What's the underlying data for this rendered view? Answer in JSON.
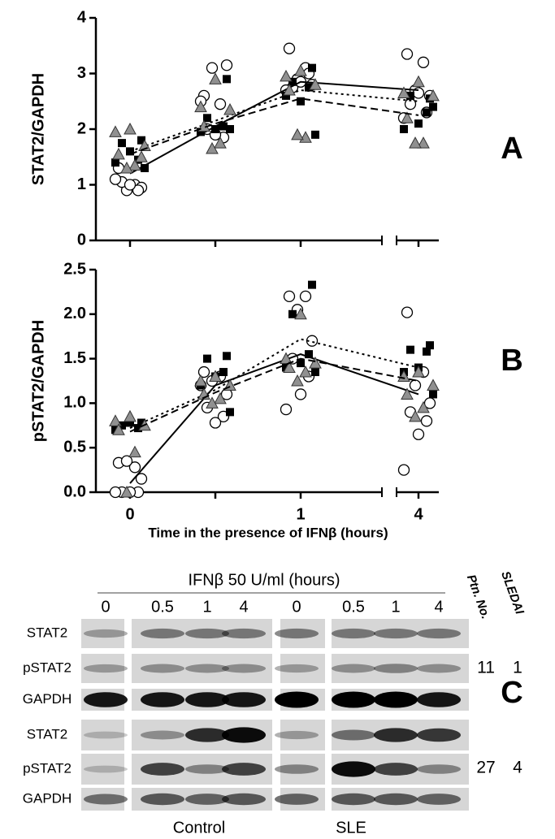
{
  "chart_data": [
    {
      "type": "scatter",
      "panel": "A",
      "ylabel": "STAT2/GAPDH",
      "categories": [
        "0",
        null,
        "1",
        "4"
      ],
      "ylim": [
        0,
        4
      ],
      "yticks": [
        0,
        1,
        2,
        3,
        4
      ],
      "series": [
        {
          "marker": "circle",
          "color": "#ffffff",
          "line_style": "solid",
          "values": [
            [
              1.3,
              1.0,
              0.9,
              0.95,
              1.05,
              0.9,
              1.0,
              1.1
            ],
            [
              2.6,
              2.45,
              3.1,
              3.15,
              2.0,
              1.85,
              1.9,
              2.5
            ],
            [
              3.45,
              3.1,
              2.9,
              2.8,
              2.75,
              3.0,
              2.85,
              2.7
            ],
            [
              3.35,
              3.2,
              2.7,
              2.6,
              2.45,
              2.3,
              2.65,
              2.2
            ]
          ],
          "means": [
            1.2,
            2.05,
            2.85,
            2.7
          ]
        },
        {
          "marker": "square",
          "color": "#000000",
          "line_style": "dotted",
          "values": [
            [
              1.8,
              1.75,
              1.45,
              1.6,
              1.4,
              1.3
            ],
            [
              2.9,
              2.2,
              2.05,
              2.0,
              1.95,
              2.0
            ],
            [
              3.1,
              2.85,
              2.75,
              2.5,
              2.6,
              1.9
            ],
            [
              2.55,
              2.6,
              2.3,
              2.1,
              2.0,
              2.4
            ]
          ],
          "means": [
            1.6,
            2.15,
            2.7,
            2.5
          ]
        },
        {
          "marker": "triangle",
          "color": "#909090",
          "line_style": "dashed",
          "values": [
            [
              2.0,
              1.95,
              1.7,
              1.55,
              1.35,
              1.3,
              1.5
            ],
            [
              2.9,
              2.4,
              2.35,
              2.05,
              1.75,
              1.65
            ],
            [
              3.05,
              2.95,
              2.8,
              2.7,
              1.85,
              1.9
            ],
            [
              2.85,
              2.65,
              2.6,
              2.2,
              1.75,
              1.75
            ]
          ],
          "means": [
            1.55,
            2.1,
            2.55,
            2.25
          ]
        }
      ]
    },
    {
      "type": "scatter",
      "panel": "B",
      "ylabel": "pSTAT2/GAPDH",
      "xlabel": "Time in the presence of IFNβ (hours)",
      "categories": [
        "0",
        null,
        "1",
        "4"
      ],
      "ylim": [
        0,
        2.5
      ],
      "yticks": [
        {
          "value": 0,
          "label": "0.0"
        },
        0.5,
        {
          "value": 1,
          "label": "1.0"
        },
        1.5,
        {
          "value": 2,
          "label": "2.0"
        },
        2.5
      ],
      "series": [
        {
          "marker": "circle",
          "color": "#ffffff",
          "line_style": "solid",
          "values": [
            [
              0.33,
              0.28,
              0.35,
              0.15,
              0,
              0,
              0,
              0
            ],
            [
              1.35,
              1.3,
              1.25,
              1.1,
              0.95,
              0.85,
              0.78,
              1.2
            ],
            [
              2.2,
              2.2,
              2.05,
              1.7,
              1.5,
              1.3,
              1.1,
              0.93
            ],
            [
              2.02,
              1.35,
              1.2,
              1.0,
              0.9,
              0.8,
              0.65,
              0.25
            ]
          ],
          "means": [
            0.1,
            1.2,
            1.55,
            1.1
          ]
        },
        {
          "marker": "square",
          "color": "#000000",
          "line_style": "dotted",
          "values": [
            [
              0.78,
              0.75,
              0.72,
              0.78,
              0.7
            ],
            [
              1.53,
              1.5,
              1.35,
              1.3,
              1.2,
              0.9
            ],
            [
              2.33,
              2.0,
              1.55,
              1.45,
              1.4,
              1.35
            ],
            [
              1.65,
              1.6,
              1.58,
              1.4,
              1.35,
              1.1
            ]
          ],
          "means": [
            0.72,
            1.15,
            1.72,
            1.4
          ]
        },
        {
          "marker": "triangle",
          "color": "#909090",
          "line_style": "dashed",
          "values": [
            [
              0.85,
              0.8,
              0.75,
              0.7,
              0.45,
              0
            ],
            [
              1.3,
              1.25,
              1.2,
              1.1,
              1.05,
              1.0
            ],
            [
              2.0,
              1.5,
              1.45,
              1.4,
              1.35,
              1.25
            ],
            [
              1.35,
              1.3,
              1.2,
              1.1,
              0.95,
              0.85
            ]
          ],
          "means": [
            0.68,
            1.12,
            1.5,
            1.25
          ]
        }
      ]
    }
  ],
  "blot": {
    "panel": "C",
    "header": "IFNβ 50 U/ml (hours)",
    "times": [
      "0",
      "0.5",
      "1",
      "4",
      "0",
      "0.5",
      "1",
      "4"
    ],
    "col_headers": [
      "Ptn. No.",
      "SLEDAI"
    ],
    "groups": [
      "Control",
      "SLE"
    ],
    "blocks": [
      {
        "rows": [
          "STAT2",
          "pSTAT2",
          "GAPDH"
        ],
        "patient": "11",
        "sledai": "1"
      },
      {
        "rows": [
          "STAT2",
          "pSTAT2",
          "GAPDH"
        ],
        "patient": "27",
        "sledai": "4"
      }
    ]
  }
}
